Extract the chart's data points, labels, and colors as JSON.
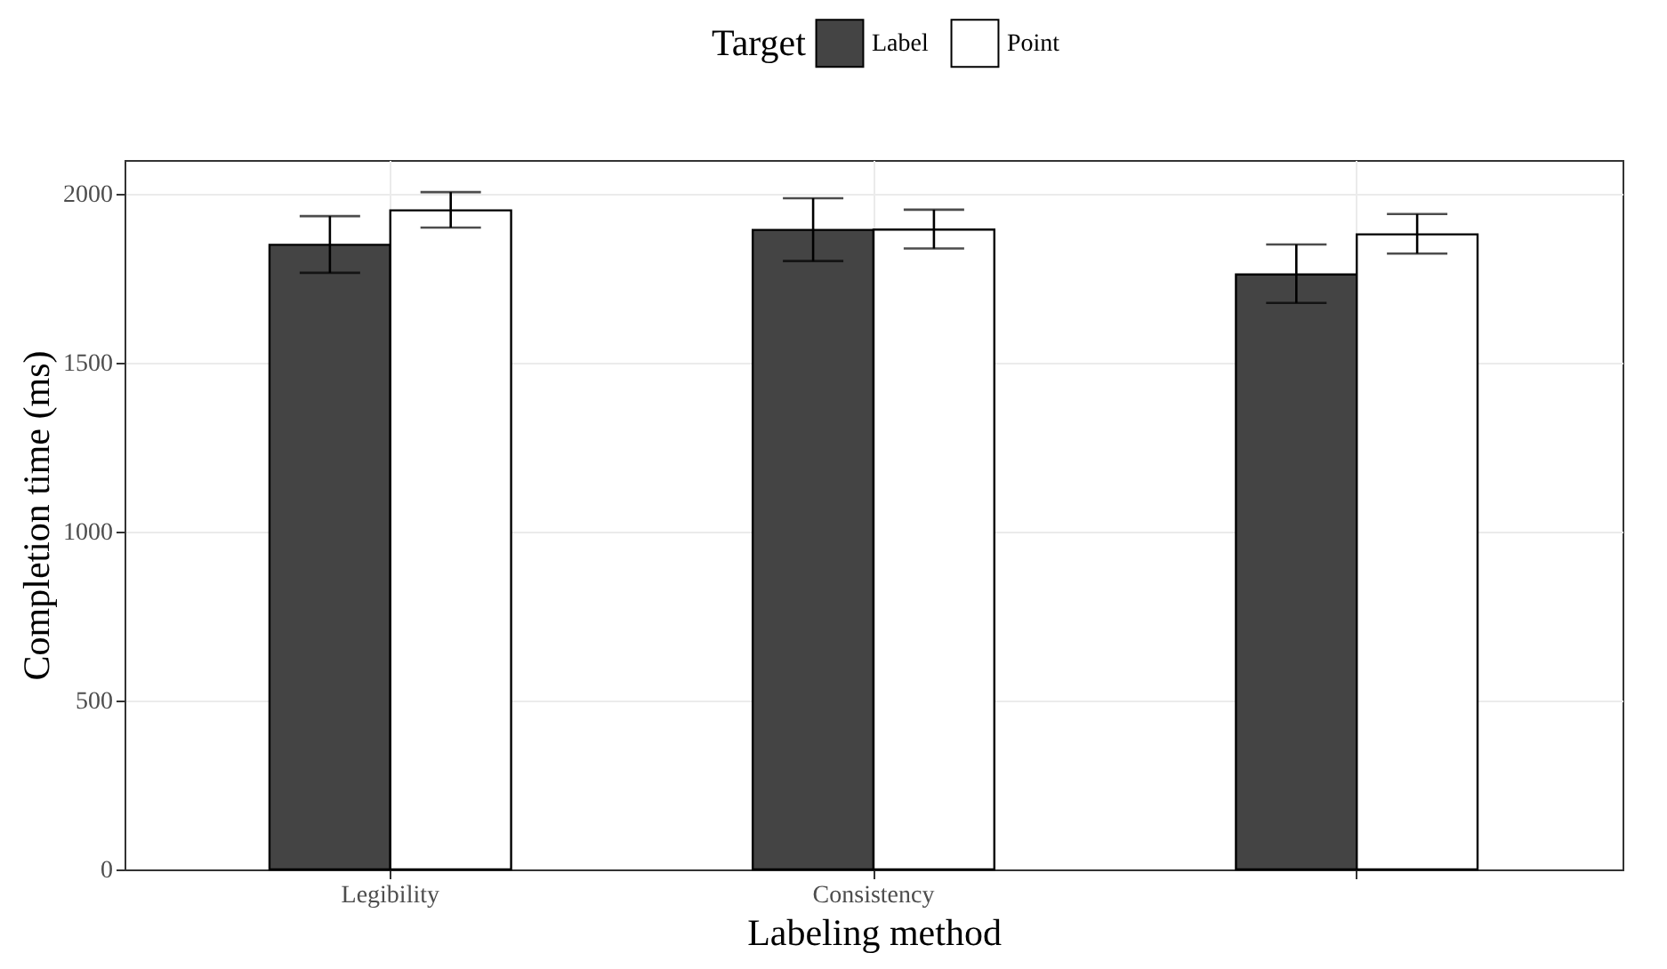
{
  "chart_data": {
    "type": "bar",
    "xlabel": "Labeling method",
    "ylabel": "Completion time (ms)",
    "legend_title": "Target",
    "legend": "top",
    "categories": [
      "Legibility",
      "Consistency",
      null
    ],
    "series": [
      {
        "name": "Label",
        "color": "#444444",
        "values": [
          1849,
          1893,
          1761
        ],
        "errors": [
          [
            1766,
            1934
          ],
          [
            1801,
            1987
          ],
          [
            1677,
            1850
          ]
        ]
      },
      {
        "name": "Point",
        "color": "#ffffff",
        "values": [
          1951,
          1894,
          1880
        ],
        "errors": [
          [
            1900,
            2005
          ],
          [
            1838,
            1953
          ],
          [
            1823,
            1940
          ]
        ]
      }
    ],
    "ylim": [
      0,
      2100
    ],
    "yticks": [
      0,
      500,
      1000,
      1500,
      2000
    ],
    "grid": true
  }
}
